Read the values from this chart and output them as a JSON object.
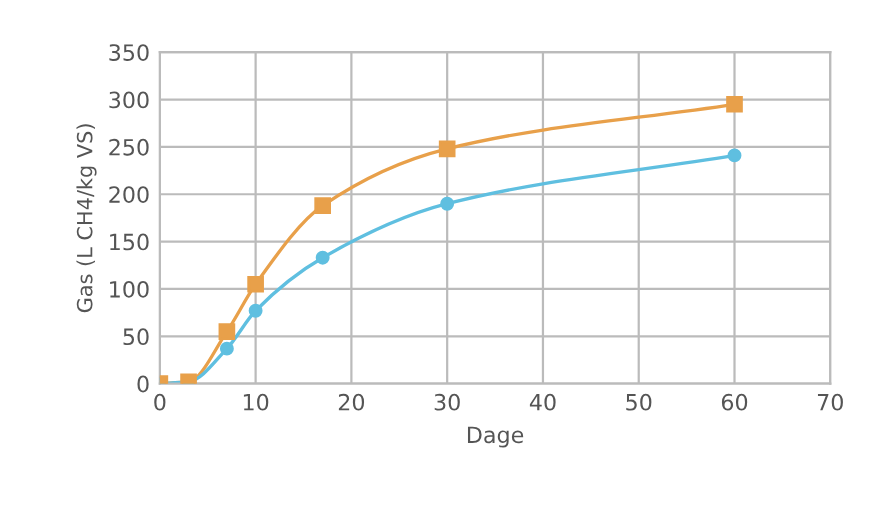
{
  "chart_data": {
    "type": "line",
    "xlabel": "Dage",
    "ylabel": "Gas (L CH4/kg VS)",
    "xlim": [
      0,
      70
    ],
    "xticks": [
      0,
      10,
      20,
      30,
      40,
      50,
      60,
      70
    ],
    "ylim": [
      0,
      350
    ],
    "yticks": [
      0,
      50,
      100,
      150,
      200,
      250,
      300,
      350
    ],
    "grid": true,
    "line_style": "solid",
    "series": [
      {
        "color": "#e8a04a",
        "marker": "square",
        "x": [
          0,
          3,
          7,
          10,
          17,
          30,
          60
        ],
        "values": [
          0,
          2,
          55,
          105,
          188,
          248,
          295
        ]
      },
      {
        "color": "#5fbfe0",
        "marker": "circle",
        "x": [
          0,
          3,
          7,
          10,
          17,
          30,
          60
        ],
        "values": [
          0,
          2,
          37,
          77,
          133,
          190,
          241
        ]
      }
    ]
  }
}
